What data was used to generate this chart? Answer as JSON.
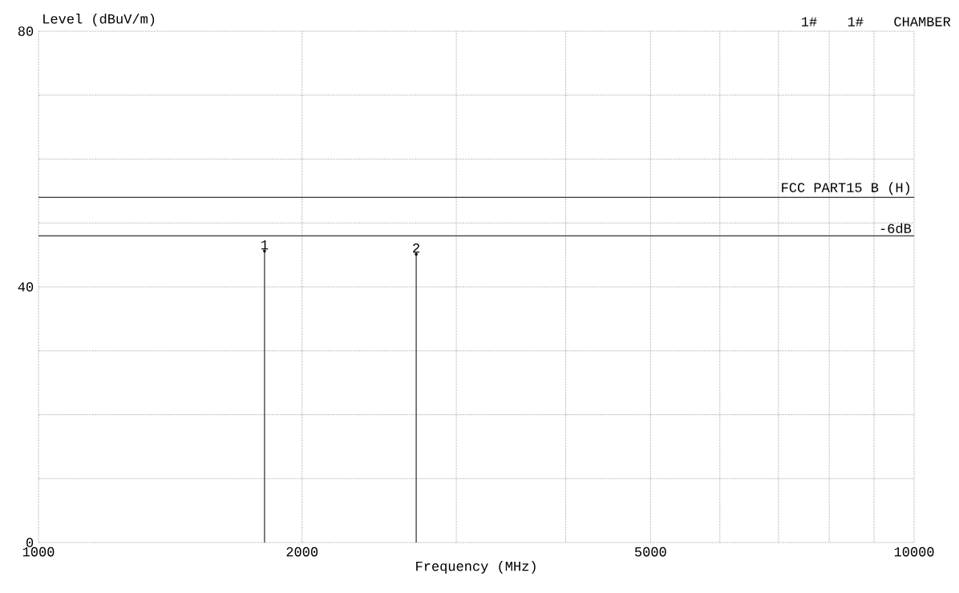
{
  "chart_data": {
    "type": "lollipop",
    "xlabel": "Frequency (MHz)",
    "ylabel": "Level (dBuV/m)",
    "x": [
      1812,
      2700
    ],
    "values": [
      45.6,
      45.1
    ],
    "color": "#000000",
    "xlim": [
      1000,
      10000
    ],
    "ylim": [
      0,
      80
    ],
    "log": "x",
    "xticks": [
      1000,
      2000,
      {
        "value": 3000,
        "label": null
      },
      {
        "value": 4000,
        "label": null
      },
      5000,
      {
        "value": 6000,
        "label": null
      },
      {
        "value": 7000,
        "label": null
      },
      {
        "value": 8000,
        "label": null
      },
      {
        "value": 9000,
        "label": null
      },
      10000
    ],
    "yticks": [
      0,
      {
        "value": 10,
        "label": null
      },
      {
        "value": 20,
        "label": null
      },
      {
        "value": 30,
        "label": null
      },
      40,
      {
        "value": 50,
        "label": null
      },
      {
        "value": 60,
        "label": null
      },
      {
        "value": 70,
        "label": null
      },
      80
    ],
    "grid": true,
    "ref_lines": [
      {
        "axis": "y",
        "value": 54,
        "label": "FCC PART15 B (H)"
      },
      {
        "axis": "y",
        "value": 48,
        "label": "-6dB"
      }
    ],
    "annotations": [
      "1#",
      "1#",
      "CHAMBER",
      {
        "text": "1",
        "x": 1812,
        "y": 45.6
      },
      {
        "text": "2",
        "x": 2700,
        "y": 45.1
      }
    ]
  }
}
